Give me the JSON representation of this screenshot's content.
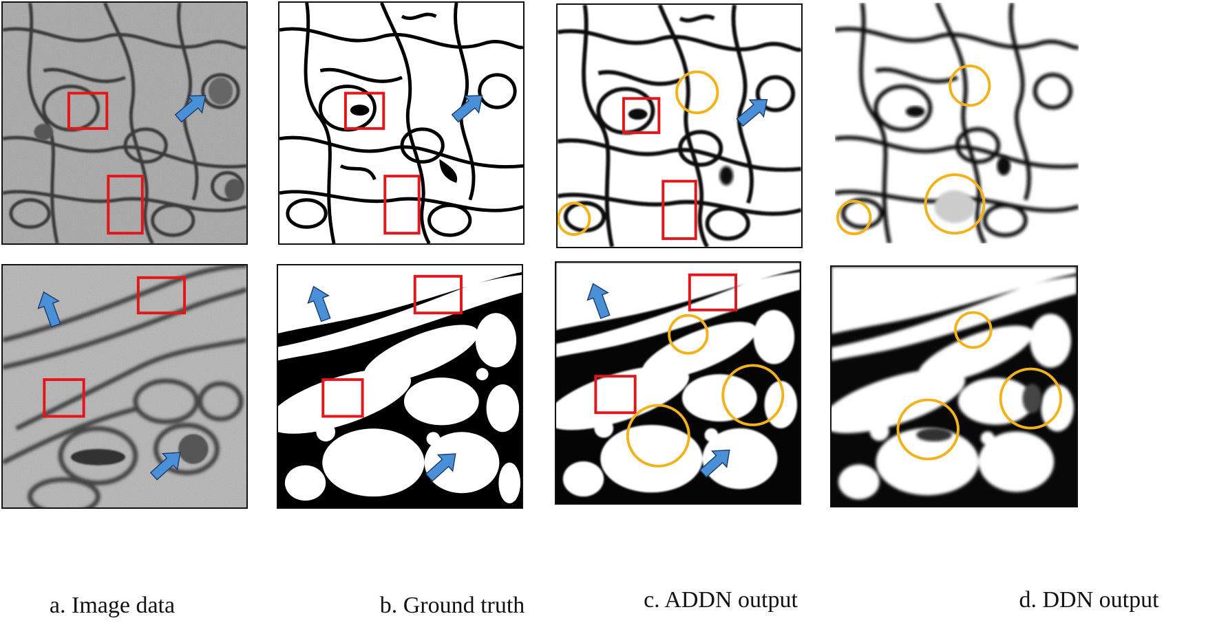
{
  "captions": {
    "a": "a. Image data",
    "b": "b. Ground truth",
    "c": "c. ADDN output",
    "d": "d. DDN output"
  },
  "colors": {
    "highlight_box": "#e3161b",
    "highlight_circle": "#f2b21b",
    "arrow": "#4a90d9",
    "em_background": "#a8a8a8",
    "membrane": "#111111"
  },
  "annotations": {
    "shape_types": [
      "red-square-box",
      "yellow-circle",
      "blue-arrow"
    ]
  }
}
